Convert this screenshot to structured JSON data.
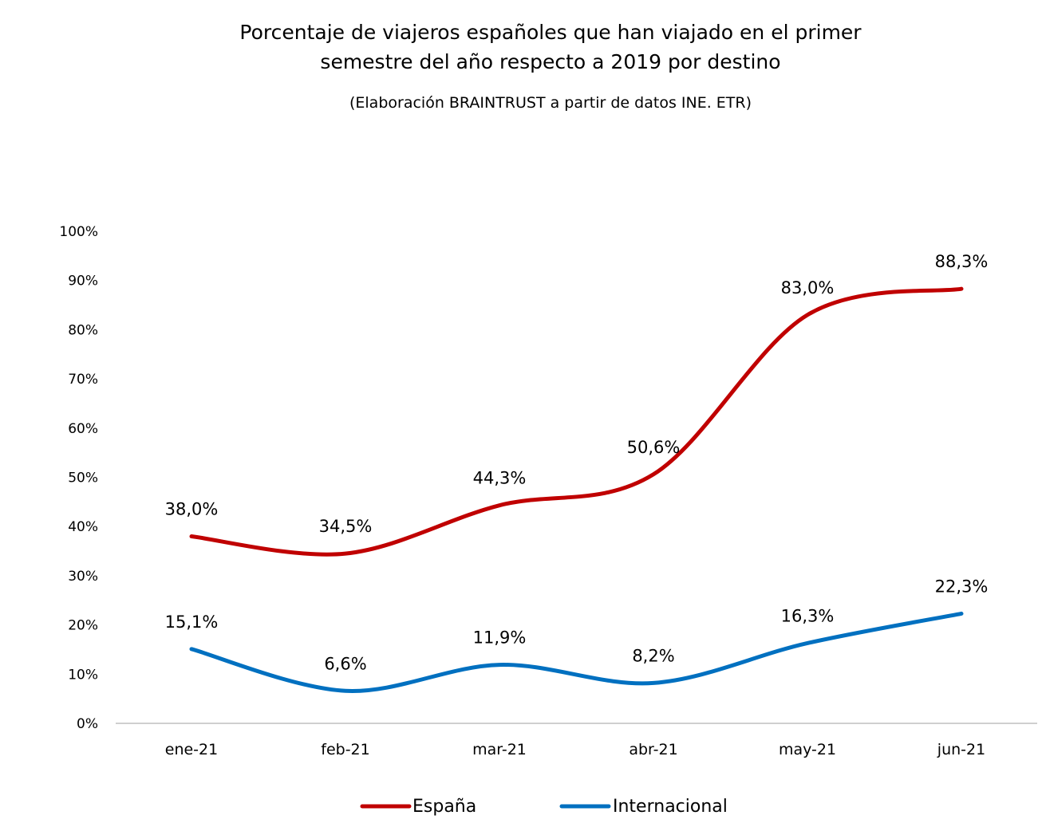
{
  "chart_data": {
    "type": "line",
    "title_lines": [
      "Porcentaje de viajeros españoles que han viajado en el primer",
      "semestre del año respecto a 2019 por destino"
    ],
    "subtitle": "(Elaboración BRAINTRUST a partir de datos INE. ETR)",
    "categories": [
      "ene-21",
      "feb-21",
      "mar-21",
      "abr-21",
      "may-21",
      "jun-21"
    ],
    "y_ticks": [
      "0%",
      "10%",
      "20%",
      "30%",
      "40%",
      "50%",
      "60%",
      "70%",
      "80%",
      "90%",
      "100%"
    ],
    "ylim": [
      0,
      100
    ],
    "grid": false,
    "legend_position": "bottom",
    "series": [
      {
        "name": "España",
        "color": "#c00000",
        "values": [
          38.0,
          34.5,
          44.3,
          50.6,
          83.0,
          88.3
        ],
        "labels": [
          "38,0%",
          "34,5%",
          "44,3%",
          "50,6%",
          "83,0%",
          "88,3%"
        ]
      },
      {
        "name": "Internacional",
        "color": "#0070c0",
        "values": [
          15.1,
          6.6,
          11.9,
          8.2,
          16.3,
          22.3
        ],
        "labels": [
          "15,1%",
          "6,6%",
          "11,9%",
          "8,2%",
          "16,3%",
          "22,3%"
        ]
      }
    ]
  }
}
